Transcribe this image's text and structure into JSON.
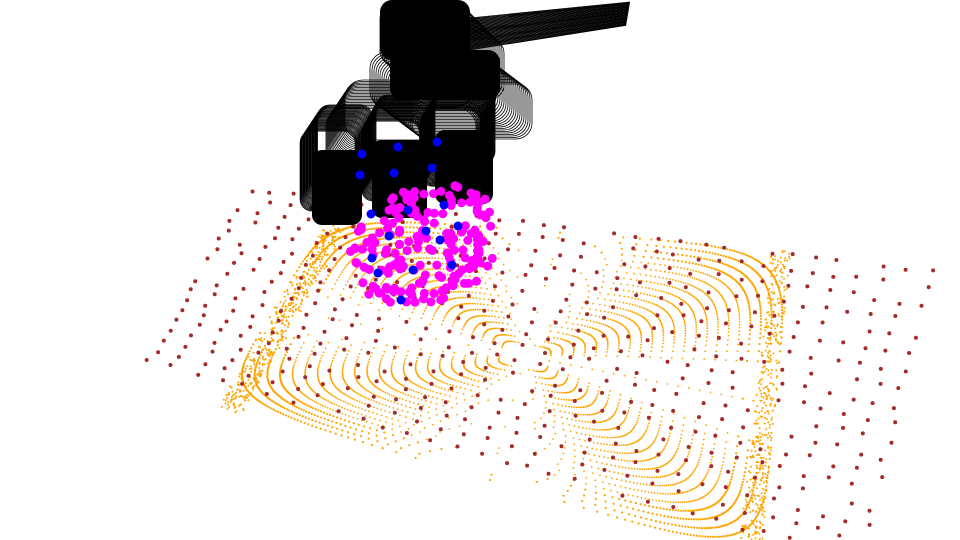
{
  "scene": {
    "background": "#ffffff",
    "colors": {
      "surface_points": "#ffa500",
      "sample_points": "#a52a2a",
      "contact_points": "#ff00ff",
      "fingertip_points": "#0000ff",
      "gripper": "#000000"
    },
    "objects": [
      "robot-gripper-mesh",
      "object-surface-point-cloud",
      "sampled-grid-points",
      "contact-points",
      "fingertip-points"
    ]
  }
}
